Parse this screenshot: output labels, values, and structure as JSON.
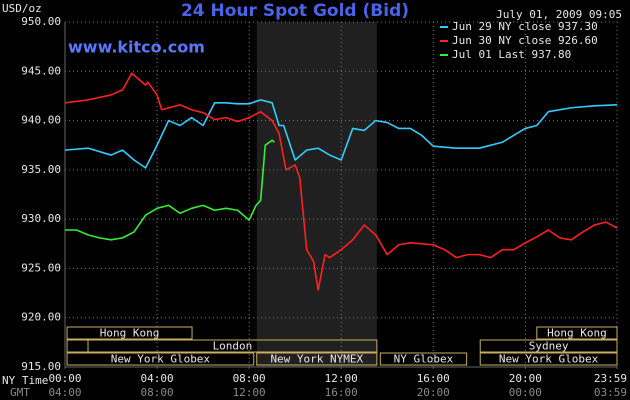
{
  "chart_data": {
    "type": "line",
    "title": "24 Hour Spot Gold (Bid)",
    "timestamp": "July 01, 2009 09:05",
    "site": "www.kitco.com",
    "y_label": "USD/oz",
    "x_label": "NY Time",
    "x2_label": "GMT",
    "xlim": [
      0,
      23.983
    ],
    "ylim": [
      915,
      950
    ],
    "xticks": [
      {
        "value": 0,
        "label": "00:00"
      },
      {
        "value": 4,
        "label": "04:00"
      },
      {
        "value": 8,
        "label": "08:00"
      },
      {
        "value": 12,
        "label": "12:00"
      },
      {
        "value": 16,
        "label": "16:00"
      },
      {
        "value": 20,
        "label": "20:00"
      },
      {
        "value": 23.983,
        "label": "23:59"
      }
    ],
    "x2ticks": [
      {
        "value": 0,
        "label": "04:00"
      },
      {
        "value": 4,
        "label": "08:00"
      },
      {
        "value": 8,
        "label": "12:00"
      },
      {
        "value": 12,
        "label": "16:00"
      },
      {
        "value": 16,
        "label": "20:00"
      },
      {
        "value": 20,
        "label": "00:00"
      },
      {
        "value": 23.983,
        "label": "03:59"
      }
    ],
    "yticks": [
      {
        "value": 915,
        "label": "915.00"
      },
      {
        "value": 920,
        "label": "920.00"
      },
      {
        "value": 925,
        "label": "925.00"
      },
      {
        "value": 930,
        "label": "930.00"
      },
      {
        "value": 935,
        "label": "935.00"
      },
      {
        "value": 940,
        "label": "940.00"
      },
      {
        "value": 945,
        "label": "945.00"
      },
      {
        "value": 950,
        "label": "950.00"
      }
    ],
    "grid": true,
    "shaded_hours": [
      8.33,
      13.55
    ],
    "sessions": [
      {
        "label": "Hong Kong",
        "start": 0.09,
        "end": 5.52,
        "row": 0
      },
      {
        "label": "Hong Kong",
        "start": 20.5,
        "end": 23.983,
        "row": 0
      },
      {
        "start": 0.09,
        "end": 1.0,
        "row": 1
      },
      {
        "label": "London",
        "start": 1.0,
        "end": 13.55,
        "row": 1
      },
      {
        "label": "Sydney",
        "start": 18.04,
        "end": 23.983,
        "row": 1
      },
      {
        "label": "New York Globex",
        "start": 0.09,
        "end": 8.2,
        "row": 2
      },
      {
        "label": "New York NYMEX",
        "start": 8.33,
        "end": 13.55,
        "row": 2
      },
      {
        "label": "NY Globex",
        "start": 13.7,
        "end": 17.45,
        "row": 2
      },
      {
        "label": "New York Globex",
        "start": 18.04,
        "end": 23.983,
        "row": 2
      }
    ],
    "series": [
      {
        "name": "Jun 29 NY close 937.30",
        "color": "#33ccff",
        "x": [
          0,
          1,
          2,
          2.5,
          3,
          3.5,
          4,
          4.5,
          5,
          5.5,
          6,
          6.5,
          7,
          7.5,
          8,
          8.5,
          9,
          9.3,
          9.5,
          10,
          10.5,
          11,
          11.5,
          12,
          12.5,
          13,
          13.5,
          14,
          14.5,
          15,
          15.5,
          16,
          17,
          18,
          18.5,
          19,
          19.5,
          20,
          20.5,
          21,
          22,
          23,
          23.983
        ],
        "values": [
          937.0,
          937.2,
          936.5,
          937.0,
          936.0,
          935.2,
          937.5,
          940.0,
          939.5,
          940.3,
          939.5,
          941.8,
          941.8,
          941.7,
          941.7,
          942.1,
          941.8,
          939.5,
          939.5,
          936.0,
          937.0,
          937.2,
          936.5,
          936.0,
          939.2,
          939.0,
          940.0,
          939.8,
          939.2,
          939.2,
          938.5,
          937.4,
          937.2,
          937.2,
          937.5,
          937.8,
          938.5,
          939.2,
          939.5,
          940.9,
          941.3,
          941.5,
          941.6
        ]
      },
      {
        "name": "Jun 30 NY close 926.60",
        "color": "#ff2020",
        "x": [
          0,
          1,
          2,
          2.5,
          2.9,
          3.5,
          3.6,
          4,
          4.2,
          5,
          5.5,
          6,
          6.5,
          7,
          7.5,
          8,
          8.5,
          9,
          9.3,
          9.6,
          10,
          10.2,
          10.5,
          10.8,
          11,
          11.3,
          11.5,
          12,
          12.5,
          13,
          13.5,
          14,
          14.5,
          15,
          16,
          16.5,
          17,
          17.5,
          18,
          18.5,
          19,
          19.5,
          20,
          20.5,
          21,
          21.5,
          22,
          22.5,
          23,
          23.5,
          23.983
        ],
        "values": [
          941.8,
          942.1,
          942.6,
          943.1,
          944.8,
          943.6,
          943.9,
          942.6,
          941.1,
          941.6,
          941.1,
          940.8,
          940.1,
          940.3,
          939.9,
          940.3,
          940.9,
          940.0,
          938.7,
          935.0,
          935.5,
          934.2,
          926.9,
          925.7,
          922.8,
          926.4,
          926.1,
          926.9,
          927.9,
          929.4,
          928.4,
          926.4,
          927.4,
          927.6,
          927.4,
          926.9,
          926.1,
          926.4,
          926.4,
          926.1,
          926.9,
          926.9,
          927.6,
          928.2,
          928.9,
          928.1,
          927.9,
          928.7,
          929.4,
          929.7,
          929.1
        ]
      },
      {
        "name": "Jul 01 Last 937.80",
        "color": "#33ee33",
        "x": [
          0,
          0.5,
          1,
          1.5,
          2,
          2.5,
          3,
          3.5,
          4,
          4.5,
          5,
          5.5,
          6,
          6.5,
          7,
          7.5,
          8,
          8.3,
          8.5,
          8.7,
          9,
          9.1
        ],
        "values": [
          928.9,
          928.9,
          928.4,
          928.1,
          927.9,
          928.1,
          928.7,
          930.4,
          931.1,
          931.4,
          930.6,
          931.1,
          931.4,
          930.9,
          931.1,
          930.9,
          929.9,
          931.4,
          931.9,
          937.5,
          938.0,
          937.8
        ]
      }
    ]
  }
}
